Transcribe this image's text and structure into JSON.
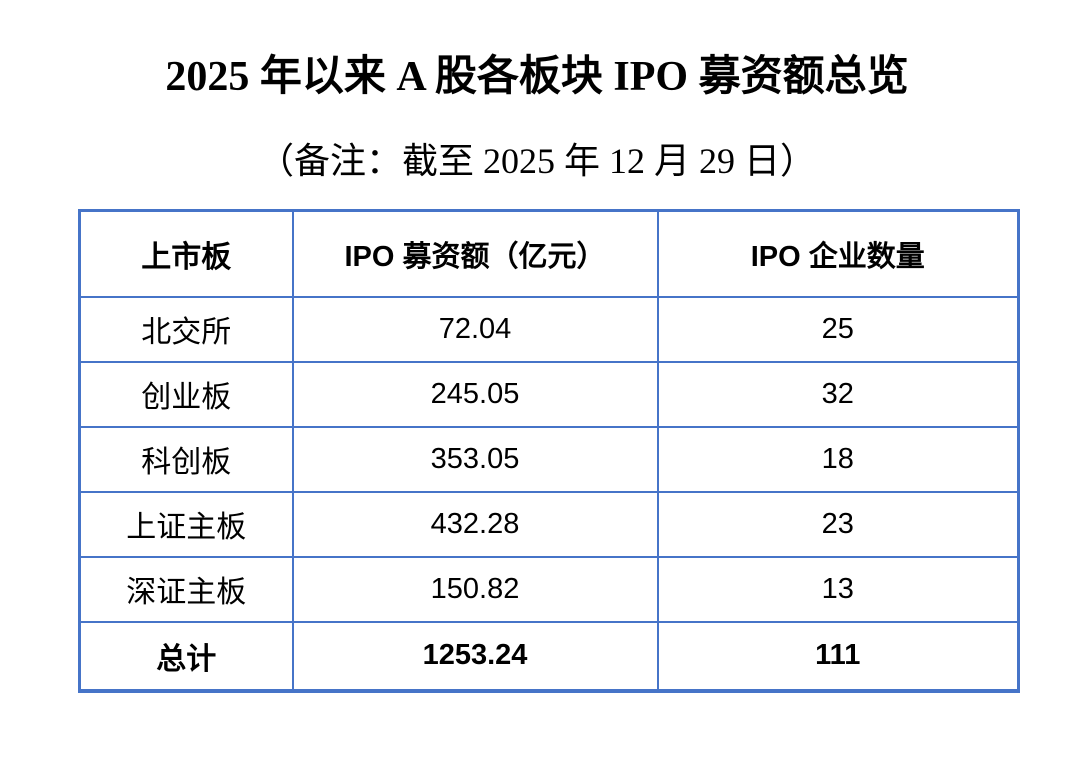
{
  "title": "2025 年以来 A 股各板块 IPO 募资额总览",
  "subtitle": "（备注：截至 2025 年 12 月 29 日）",
  "colors": {
    "table_border_blue": "#4674C8",
    "text": "#000000",
    "background": "#FFFFFF"
  },
  "table": {
    "headers": [
      "上市板",
      "IPO 募资额（亿元）",
      "IPO 企业数量"
    ],
    "rows": [
      {
        "board": "北交所",
        "amount": "72.04",
        "count": "25"
      },
      {
        "board": "创业板",
        "amount": "245.05",
        "count": "32"
      },
      {
        "board": "科创板",
        "amount": "353.05",
        "count": "18"
      },
      {
        "board": "上证主板",
        "amount": "432.28",
        "count": "23"
      },
      {
        "board": "深证主板",
        "amount": "150.82",
        "count": "13"
      }
    ],
    "total": {
      "board": "总计",
      "amount": "1253.24",
      "count": "111"
    }
  }
}
